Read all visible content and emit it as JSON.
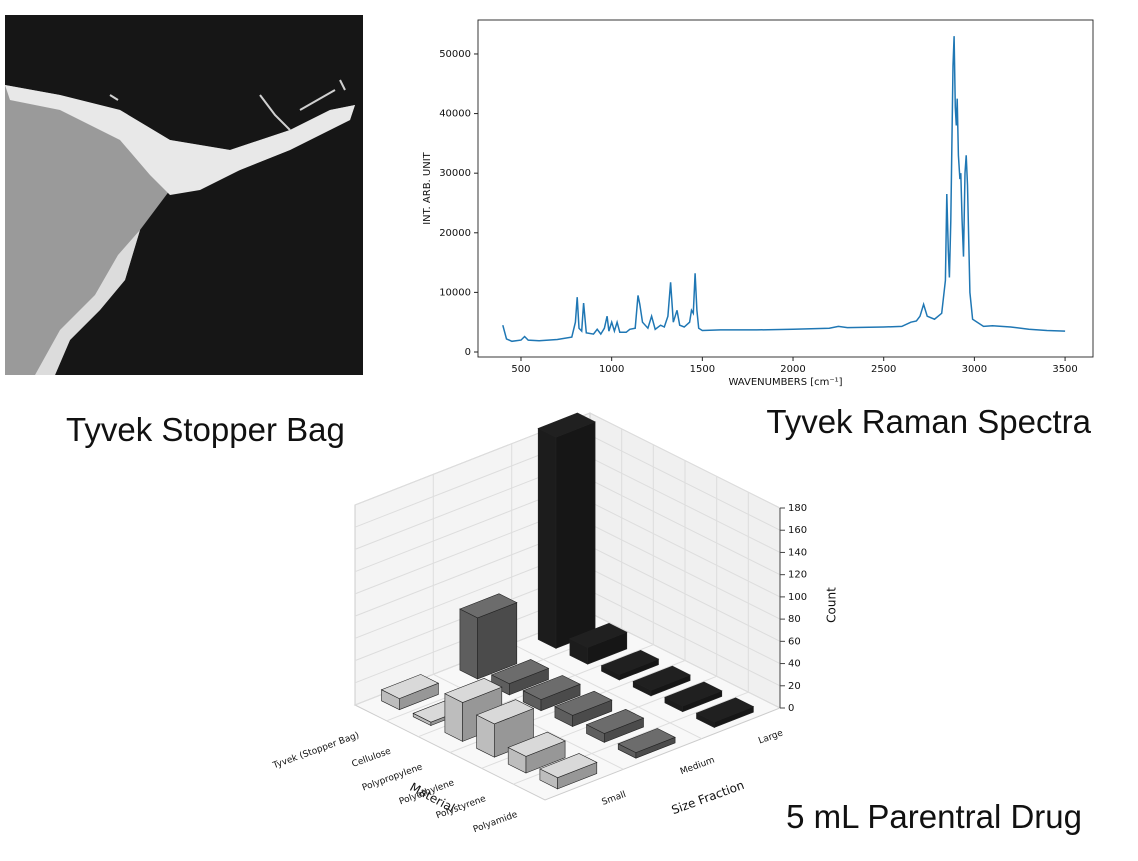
{
  "image": {
    "caption": "Tyvek Stopper Bag"
  },
  "chart_data": [
    {
      "type": "line",
      "title": "Tyvek Raman Spectra",
      "x_label": "WAVENUMBERS [cm⁻¹]",
      "y_label": "INT. ARB. UNIT",
      "color": "#1f77b4",
      "xlim": [
        263,
        3654
      ],
      "ylim": [
        -840,
        55700
      ],
      "xticks": [
        500,
        1000,
        1500,
        2000,
        2500,
        3000,
        3500
      ],
      "yticks": [
        0,
        10000,
        20000,
        30000,
        40000,
        50000
      ],
      "x": [
        400,
        420,
        450,
        500,
        520,
        540,
        600,
        700,
        780,
        800,
        810,
        820,
        835,
        845,
        860,
        900,
        920,
        940,
        960,
        975,
        985,
        1000,
        1015,
        1030,
        1045,
        1080,
        1100,
        1130,
        1145,
        1155,
        1170,
        1200,
        1220,
        1240,
        1270,
        1290,
        1310,
        1325,
        1340,
        1360,
        1375,
        1400,
        1430,
        1440,
        1450,
        1460,
        1470,
        1480,
        1500,
        1600,
        1800,
        2000,
        2200,
        2250,
        2300,
        2500,
        2600,
        2650,
        2680,
        2700,
        2720,
        2740,
        2780,
        2820,
        2840,
        2848,
        2856,
        2862,
        2870,
        2882,
        2888,
        2895,
        2900,
        2905,
        2912,
        2920,
        2925,
        2932,
        2940,
        2948,
        2955,
        2962,
        2975,
        2990,
        3050,
        3100,
        3200,
        3300,
        3400,
        3500
      ],
      "values": [
        4500,
        2200,
        1800,
        2000,
        2600,
        2000,
        1900,
        2100,
        2500,
        5000,
        9200,
        4000,
        3500,
        8200,
        3200,
        3000,
        3800,
        3000,
        4000,
        6000,
        3500,
        5000,
        3500,
        5000,
        3300,
        3300,
        3800,
        4000,
        9500,
        8000,
        5000,
        4000,
        6000,
        3800,
        4500,
        4200,
        6000,
        11700,
        5000,
        7000,
        4500,
        4200,
        5000,
        7000,
        6500,
        13200,
        7000,
        4000,
        3600,
        3700,
        3700,
        3800,
        4000,
        4300,
        4100,
        4200,
        4300,
        5000,
        5200,
        6000,
        8000,
        6000,
        5500,
        6500,
        12000,
        26500,
        17000,
        12500,
        22000,
        48000,
        53000,
        41000,
        38000,
        42500,
        33000,
        29000,
        30000,
        22000,
        16000,
        30000,
        33000,
        28000,
        10000,
        5500,
        4300,
        4400,
        4200,
        3800,
        3600,
        3500
      ]
    },
    {
      "type": "bar3d",
      "title": "5 mL Parentral Drug",
      "x_label": "Material",
      "y_label": "Size Fraction",
      "z_label": "Count",
      "categories": [
        "Tyvek (Stopper Bag)",
        "Cellulose",
        "Polypropylene",
        "Polyethylene",
        "Polystyrene",
        "Polyamide"
      ],
      "zlim": [
        0,
        180
      ],
      "zticks": [
        0,
        20,
        40,
        60,
        80,
        100,
        120,
        140,
        160,
        180
      ],
      "series": [
        {
          "name": "Small",
          "color": "#bdbdbd",
          "values": [
            10,
            3,
            35,
            30,
            15,
            10
          ]
        },
        {
          "name": "Medium",
          "color": "#5e5e5e",
          "values": [
            55,
            10,
            10,
            10,
            8,
            5
          ]
        },
        {
          "name": "Large",
          "color": "#1c1c1c",
          "values": [
            190,
            15,
            5,
            5,
            5,
            5
          ]
        }
      ]
    }
  ]
}
